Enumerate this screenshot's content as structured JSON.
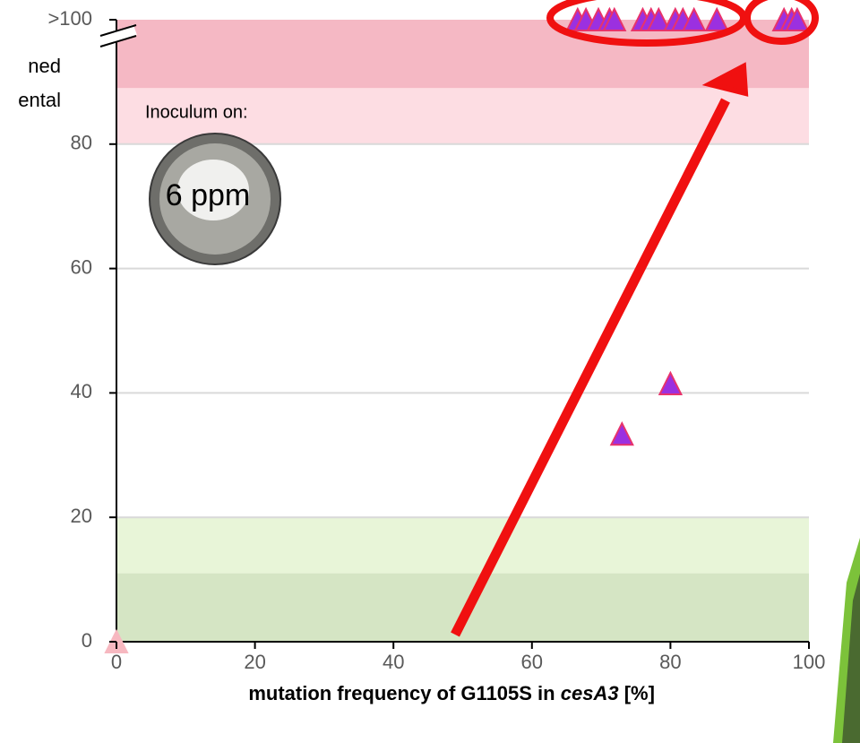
{
  "chart_data": {
    "type": "scatter",
    "xlabel_parts": [
      "mutation frequency of G1105S in ",
      "cesA3",
      " [%]"
    ],
    "annotations": [
      "ned",
      "ental",
      "Inoculum on:",
      "6 ppm"
    ],
    "xlim": [
      0,
      100
    ],
    "xticks": [
      0,
      20,
      40,
      60,
      80,
      100
    ],
    "ylim": [
      0,
      100
    ],
    "yticks": [
      0,
      20,
      40,
      60,
      80,
      {
        "value": 100,
        "label": ">100"
      }
    ],
    "grid": true,
    "bands": [
      {
        "range": [
          89,
          100
        ],
        "color": "#f5b8c4"
      },
      {
        "range": [
          80,
          89
        ],
        "color": "#fddde3"
      },
      {
        "range": [
          11,
          20
        ],
        "color": "#e8f5d8"
      },
      {
        "range": [
          0,
          11
        ],
        "color": "#d5e5c4"
      }
    ],
    "series": [
      {
        "color": "#f7b8c0",
        "edgecolor": "#f7b8c0",
        "x": [
          0
        ],
        "values": [
          0
        ]
      },
      {
        "color": "#9b30e0",
        "edgecolor": "#e8336b",
        "x": [
          73,
          80,
          66.6,
          67.8,
          69.6,
          71.2,
          71.9,
          76,
          77.2,
          78.3,
          80.7,
          81.8,
          83.4,
          86.7,
          96.4,
          97.5,
          98.3
        ],
        "values": [
          33.4,
          41.5,
          100,
          100,
          100,
          100,
          100,
          100,
          100,
          100,
          100,
          100,
          100,
          100,
          100,
          100,
          100
        ]
      }
    ]
  }
}
